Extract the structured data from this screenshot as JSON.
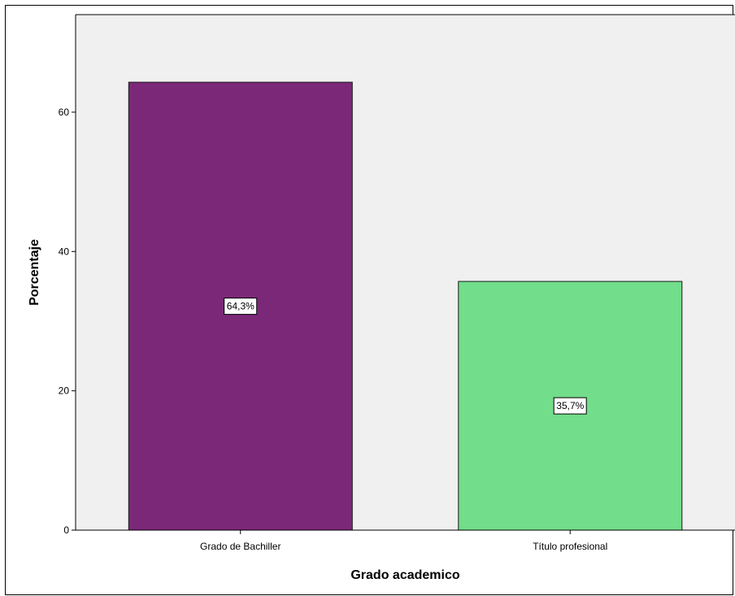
{
  "chart_data": {
    "type": "bar",
    "categories": [
      "Grado de Bachiller",
      "Título profesional"
    ],
    "values": [
      64.3,
      35.7
    ],
    "data_labels": [
      "64,3%",
      "35,7%"
    ],
    "colors": [
      "#7b2878",
      "#72dd8a"
    ],
    "title": "",
    "xlabel": "Grado academico",
    "ylabel": "Porcentaje",
    "ylim": [
      0,
      74
    ],
    "yticks": [
      0,
      20,
      40,
      60
    ],
    "ytick_labels": [
      "0",
      "20",
      "40",
      "60"
    ],
    "grid": false,
    "plot_background": "#f0f0f0"
  }
}
